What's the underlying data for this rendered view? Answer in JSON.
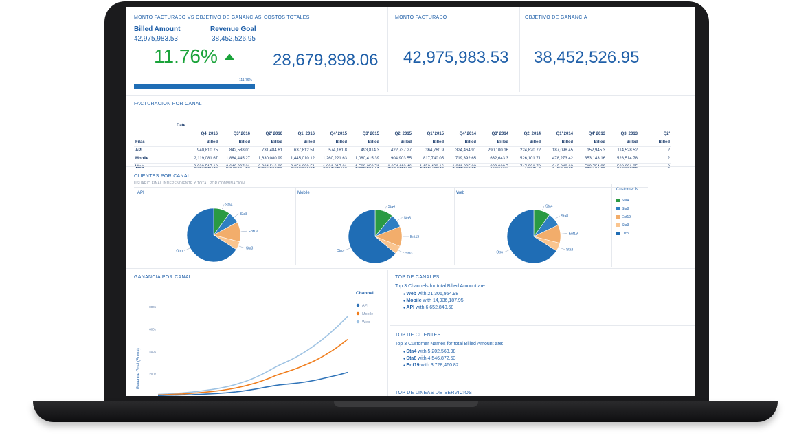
{
  "kpi1": {
    "title": "MONTO FACTURADO VS OBJETIVO DE GANANCIAS",
    "billed_label": "Billed Amount",
    "billed_value": "42,975,983.53",
    "goal_label": "Revenue Goal",
    "goal_value": "38,452,526.95",
    "percent": "11.76%",
    "bar_label": "111.76%"
  },
  "kpi2": {
    "title": "COSTOS TOTALES",
    "value": "28,679,898.06"
  },
  "kpi3": {
    "title": "MONTO FACTURADO",
    "value": "42,975,983.53"
  },
  "kpi4": {
    "title": "OBJETIVO DE GANANCIA",
    "value": "38,452,526.95"
  },
  "table": {
    "title": "FACTURACION POR CANAL",
    "group_label": "Date",
    "rows_label": "Filas",
    "periods": [
      "Q4' 2016",
      "Q3' 2016",
      "Q2' 2016",
      "Q1' 2016",
      "Q4' 2015",
      "Q3' 2015",
      "Q2' 2015",
      "Q1' 2015",
      "Q4' 2014",
      "Q3' 2014",
      "Q2' 2014",
      "Q1' 2014",
      "Q4' 2013",
      "Q3' 2013",
      "Q2'"
    ],
    "measure": "Billed",
    "rows": [
      {
        "name": "API",
        "values": [
          "940,810.75",
          "842,588.01",
          "731,484.61",
          "637,812.51",
          "574,181.8",
          "493,814.3",
          "422,737.27",
          "364,760.9",
          "324,464.91",
          "290,100.16",
          "224,820.72",
          "187,098.45",
          "152,945.3",
          "114,528.52",
          "2"
        ]
      },
      {
        "name": "Mobile",
        "values": [
          "2,119,081.67",
          "1,864,445.27",
          "1,630,080.99",
          "1,445,010.12",
          "1,260,221.63",
          "1,080,415.39",
          "904,903.55",
          "817,740.05",
          "719,392.65",
          "632,643.3",
          "526,101.71",
          "478,273.42",
          "353,143.16",
          "528,514.78",
          "2"
        ]
      },
      {
        "name": "Web",
        "values": [
          "3,020,517.18",
          "2,646,907.21",
          "2,324,516.86",
          "2,056,609.51",
          "1,801,817.01",
          "1,568,259.71",
          "1,354,113.46",
          "1,152,438.16",
          "1,011,305.82",
          "900,000.7",
          "747,001.78",
          "643,840.63",
          "510,754.99",
          "508,091.35",
          "2"
        ]
      }
    ]
  },
  "pies": {
    "title": "CLIENTES POR CANAL",
    "subtitle": "USUARIO FINAL INDEPENDIENTE Y TOTAL POR COMBINACION",
    "panels": [
      {
        "label": "API"
      },
      {
        "label": "Mobile"
      },
      {
        "label": "Web"
      }
    ],
    "slice_labels": [
      "Sta4",
      "Sta8",
      "Ent19",
      "Sta3",
      "Otro"
    ],
    "legend_title": "Customer N...",
    "legend": [
      "Sta4",
      "Sta8",
      "Ent19",
      "Sta3",
      "Otro"
    ],
    "colors": [
      "#2a9a43",
      "#2f7fc2",
      "#f2ad6b",
      "#fac58f",
      "#1f6db5"
    ]
  },
  "chart_data": [
    {
      "type": "pie",
      "title": "API",
      "categories": [
        "Sta4",
        "Sta8",
        "Ent19",
        "Sta3",
        "Otro"
      ],
      "values": [
        10,
        7,
        12,
        5,
        66
      ]
    },
    {
      "type": "pie",
      "title": "Mobile",
      "categories": [
        "Sta4",
        "Sta8",
        "Ent19",
        "Sta3",
        "Otro"
      ],
      "values": [
        11,
        8,
        12,
        5,
        64
      ]
    },
    {
      "type": "pie",
      "title": "Web",
      "categories": [
        "Sta4",
        "Sta8",
        "Ent19",
        "Sta3",
        "Otro"
      ],
      "values": [
        10,
        8,
        11,
        5,
        66
      ]
    },
    {
      "type": "line",
      "title": "GANANCIA POR CANAL",
      "ylabel": "Revenue Goal (Suma)",
      "xlabel": "",
      "legend_title": "Channel",
      "yticks": [
        "800k",
        "600k",
        "400k",
        "200k"
      ],
      "ylim": [
        0,
        900000
      ],
      "x": [
        0,
        1,
        2,
        3,
        4,
        5,
        6,
        7,
        8,
        9,
        10,
        11,
        12,
        13,
        14,
        15,
        16,
        17,
        18,
        19,
        20,
        21,
        22,
        23,
        24,
        25,
        26,
        27,
        28,
        29,
        30,
        31,
        32,
        33,
        34,
        35,
        36,
        37,
        38,
        39
      ],
      "series": [
        {
          "name": "API",
          "color": "#2f73b8",
          "values": [
            5000,
            6000,
            7000,
            8000,
            9000,
            10000,
            11000,
            12000,
            14000,
            16000,
            18000,
            20000,
            23000,
            26000,
            29000,
            33000,
            37000,
            42000,
            48000,
            55000,
            62000,
            70000,
            78000,
            86000,
            94000,
            100000,
            104000,
            108000,
            113000,
            118000,
            124000,
            131000,
            139000,
            148000,
            158000,
            168000,
            178000,
            188000,
            200000,
            212000
          ]
        },
        {
          "name": "Mobile",
          "color": "#f07d1c",
          "values": [
            10000,
            11000,
            13000,
            15000,
            17000,
            19000,
            22000,
            25000,
            28000,
            32000,
            36000,
            40000,
            45000,
            50000,
            57000,
            64000,
            72000,
            82000,
            92000,
            104000,
            116000,
            130000,
            146000,
            162000,
            180000,
            196000,
            210000,
            224000,
            240000,
            256000,
            274000,
            292000,
            312000,
            334000,
            358000,
            384000,
            412000,
            442000,
            474000,
            508000
          ]
        },
        {
          "name": "Web",
          "color": "#9fc3e3",
          "values": [
            15000,
            17000,
            19000,
            22000,
            25000,
            28000,
            32000,
            36000,
            41000,
            46000,
            52000,
            58000,
            65000,
            73000,
            82000,
            92000,
            104000,
            118000,
            132000,
            148000,
            166000,
            186000,
            208000,
            232000,
            256000,
            278000,
            298000,
            318000,
            340000,
            364000,
            390000,
            418000,
            448000,
            480000,
            514000,
            550000,
            588000,
            628000,
            670000,
            714000
          ]
        }
      ]
    }
  ],
  "line": {
    "title": "GANANCIA POR CANAL",
    "ylabel": "Revenue Goal (Suma)",
    "legend_title": "Channel",
    "legend": [
      "API",
      "Mobile",
      "Web"
    ]
  },
  "top_channels": {
    "title": "TOP DE CANALES",
    "intro": "Top 3 Channels for total Billed Amount are:",
    "items": [
      {
        "name": "Web",
        "text": "with 21,306,954.98"
      },
      {
        "name": "Mobile",
        "text": "with 14,936,187.95"
      },
      {
        "name": "API",
        "text": "with 6,652,840.58"
      }
    ]
  },
  "top_clients": {
    "title": "TOP DE CLIENTES",
    "intro": "Top 3 Customer Names for total Billed Amount are:",
    "items": [
      {
        "name": "Sta4",
        "text": "with 5,202,563.98"
      },
      {
        "name": "Sta8",
        "text": "with 4,546,872.53"
      },
      {
        "name": "Ent19",
        "text": "with 3,728,460.82"
      }
    ]
  },
  "top_lines": {
    "title": "TOP DE LINEAS DE SERVICIOS"
  }
}
